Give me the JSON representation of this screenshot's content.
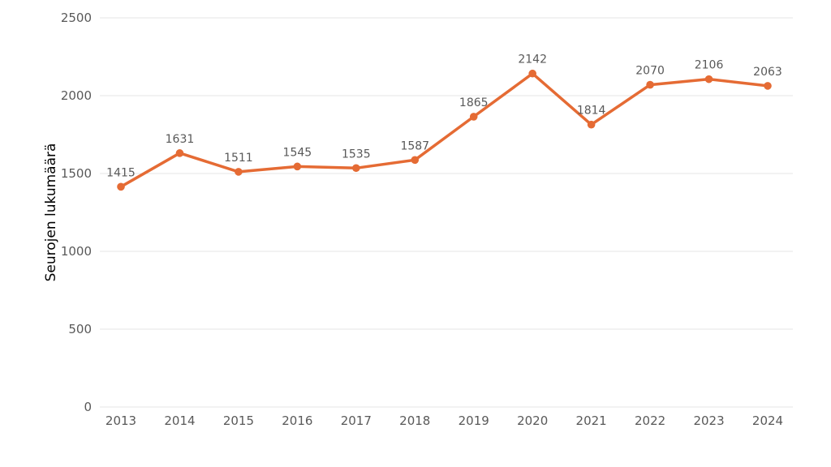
{
  "chart_data": {
    "type": "line",
    "title": "",
    "xlabel": "",
    "ylabel": "Seurojen lukumäärä",
    "x": [
      "2013",
      "2014",
      "2015",
      "2016",
      "2017",
      "2018",
      "2019",
      "2020",
      "2021",
      "2022",
      "2023",
      "2024"
    ],
    "series": [
      {
        "values": [
          1415,
          1631,
          1511,
          1545,
          1535,
          1587,
          1865,
          2142,
          1814,
          2070,
          2106,
          2063
        ],
        "color": "#e56b34"
      }
    ],
    "ylim": [
      0,
      2500
    ],
    "yticks": [
      0,
      500,
      1000,
      1500,
      2000,
      2500
    ],
    "grid": "horizontal",
    "data_labels": true,
    "legend": "none"
  }
}
